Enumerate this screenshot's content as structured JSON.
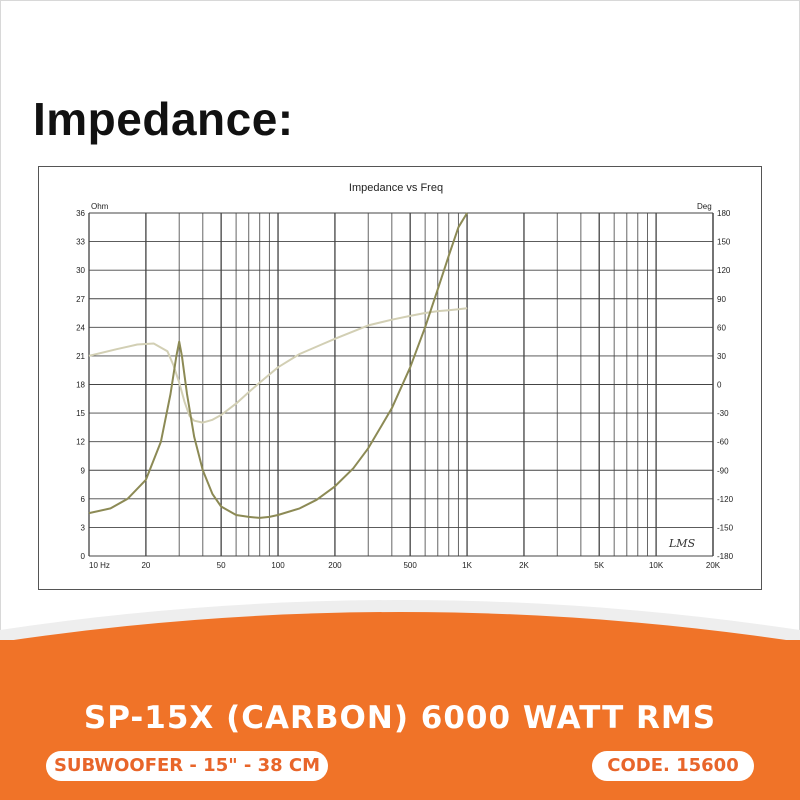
{
  "heading": "Impedance:",
  "chart_data": {
    "type": "line",
    "title": "Impedance vs Freq",
    "x_scale": "log",
    "xlim": [
      10,
      20000
    ],
    "x_ticks": [
      10,
      20,
      50,
      100,
      200,
      500,
      1000,
      2000,
      5000,
      10000,
      20000
    ],
    "x_tick_labels": [
      "10 Hz",
      "20",
      "50",
      "100",
      "200",
      "500",
      "1K",
      "2K",
      "5K",
      "10K",
      "20K"
    ],
    "y_left": {
      "unit": "Ohm",
      "ylim": [
        0,
        36
      ],
      "ticks": [
        0,
        3,
        6,
        9,
        12,
        15,
        18,
        21,
        24,
        27,
        30,
        33,
        36
      ]
    },
    "y_right": {
      "unit": "Deg",
      "ylim": [
        -180,
        180
      ],
      "ticks": [
        -180,
        -150,
        -120,
        -90,
        -60,
        -30,
        0,
        30,
        60,
        90,
        120,
        150,
        180
      ]
    },
    "grid": true,
    "watermark": "LMS",
    "series": [
      {
        "axis": "left",
        "color": "#8c8a55",
        "x": [
          10,
          13,
          16,
          20,
          24,
          27,
          29,
          30,
          31,
          33,
          36,
          40,
          45,
          50,
          60,
          70,
          80,
          90,
          100,
          130,
          160,
          200,
          250,
          300,
          400,
          500,
          600,
          700,
          800,
          900,
          1000
        ],
        "y": [
          4.5,
          5.0,
          6.0,
          8.0,
          12.0,
          17.0,
          21.0,
          22.5,
          21.0,
          17.0,
          12.5,
          9.0,
          6.5,
          5.2,
          4.3,
          4.1,
          4.0,
          4.1,
          4.3,
          5.0,
          5.9,
          7.3,
          9.2,
          11.3,
          15.5,
          19.8,
          24.0,
          28.0,
          31.5,
          34.5,
          36.0
        ]
      },
      {
        "axis": "right",
        "color": "#d2cfb4",
        "x": [
          10,
          14,
          18,
          22,
          26,
          28,
          30,
          32,
          34,
          36,
          40,
          45,
          50,
          60,
          70,
          80,
          100,
          130,
          170,
          200,
          300,
          400,
          500,
          600,
          700,
          800,
          900,
          1000
        ],
        "y": [
          30,
          37,
          42,
          43,
          35,
          20,
          2,
          -18,
          -33,
          -38,
          -40,
          -37,
          -32,
          -20,
          -8,
          2,
          18,
          32,
          42,
          48,
          62,
          68,
          72,
          75,
          77,
          78,
          79,
          80
        ]
      }
    ]
  },
  "footer": {
    "product_title": "SP-15X (CARBON) 6000 WATT RMS",
    "subtitle": "SUBWOOFER - 15\" - 38 CM",
    "code": "CODE. 15600"
  },
  "colors": {
    "accent": "#f07328",
    "pill_text": "#e8652a"
  }
}
